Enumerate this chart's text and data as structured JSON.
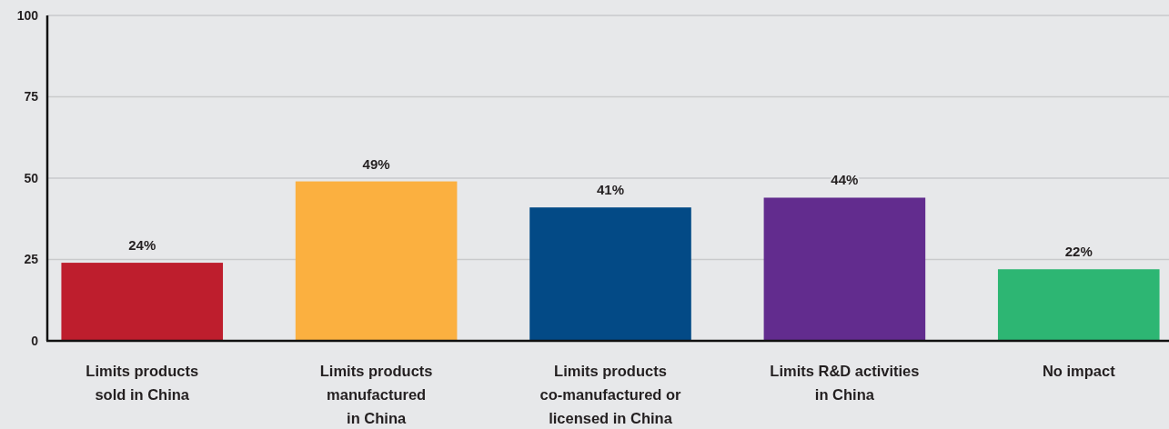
{
  "chart_data": {
    "type": "bar",
    "categories": [
      "Limits products\nsold in China",
      "Limits products\nmanufactured\nin China",
      "Limits products\nco-manufactured or\nlicensed in China",
      "Limits R&D activities\nin China",
      "No impact"
    ],
    "values": [
      24,
      49,
      41,
      44,
      22
    ],
    "colors": [
      "#be1e2d",
      "#fbb040",
      "#034a86",
      "#622c8e",
      "#2db673"
    ],
    "value_labels": [
      "24%",
      "49%",
      "41%",
      "44%",
      "22%"
    ],
    "ylim": [
      0,
      100
    ],
    "yticks": [
      0,
      25,
      50,
      75,
      100
    ],
    "grid": "y"
  }
}
